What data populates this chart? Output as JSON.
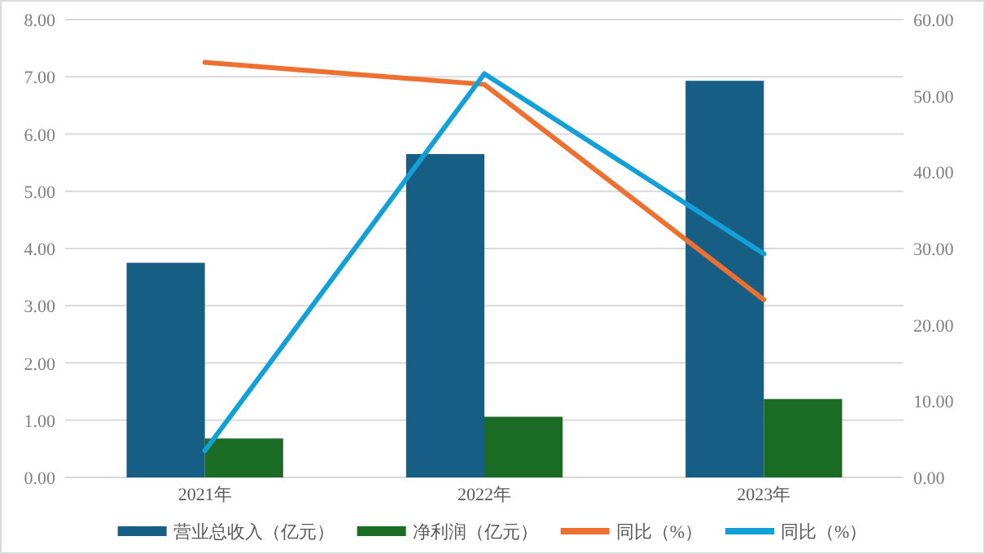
{
  "chart_data": {
    "type": "bar",
    "categories": [
      "2021年",
      "2022年",
      "2023年"
    ],
    "series": [
      {
        "name": "营业总收入（亿元）",
        "color": "#165e83",
        "values": [
          3.75,
          5.65,
          6.93
        ]
      },
      {
        "name": "净利润（亿元）",
        "color": "#1a6b24",
        "values": [
          0.68,
          1.06,
          1.37
        ]
      },
      {
        "name": "同比（%）",
        "type": "line",
        "axis": "y2",
        "color": "#ed7030",
        "values": [
          54.4,
          51.5,
          23.3
        ]
      },
      {
        "name": "同比（%）",
        "type": "line",
        "axis": "y2",
        "color": "#13a0d8",
        "values": [
          3.5,
          52.9,
          29.3
        ]
      }
    ],
    "ylim": [
      0,
      8
    ],
    "yticks": [
      {
        "value": 0,
        "label": "0.00"
      },
      {
        "value": 1,
        "label": "1.00"
      },
      {
        "value": 2,
        "label": "2.00"
      },
      {
        "value": 3,
        "label": "3.00"
      },
      {
        "value": 4,
        "label": "4.00"
      },
      {
        "value": 5,
        "label": "5.00"
      },
      {
        "value": 6,
        "label": "6.00"
      },
      {
        "value": 7,
        "label": "7.00"
      },
      {
        "value": 8,
        "label": "8.00"
      }
    ],
    "y2lim": [
      0,
      60
    ],
    "y2ticks": [
      {
        "value": 0,
        "label": "0.00"
      },
      {
        "value": 10,
        "label": "10.00"
      },
      {
        "value": 20,
        "label": "20.00"
      },
      {
        "value": 30,
        "label": "30.00"
      },
      {
        "value": 40,
        "label": "40.00"
      },
      {
        "value": 50,
        "label": "50.00"
      },
      {
        "value": 60,
        "label": "60.00"
      }
    ],
    "grid": "y",
    "legend": "bottom",
    "line_style": "solid"
  }
}
